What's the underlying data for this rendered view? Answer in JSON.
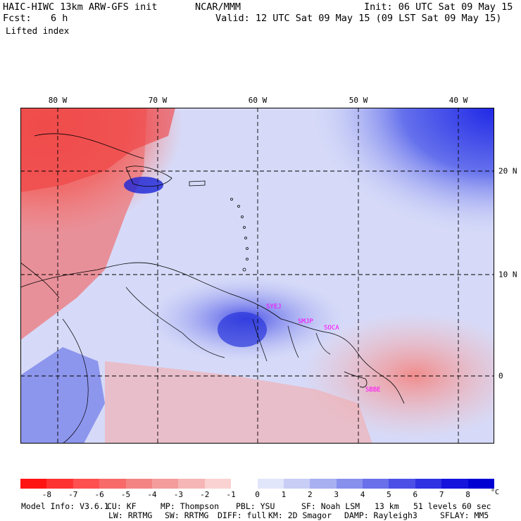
{
  "header": {
    "title_left": "HAIC-HIWC 13km ARW-GFS init",
    "org": "NCAR/MMM",
    "init": "Init: 06 UTC Sat 09 May 15",
    "fcst_label": "Fcst:",
    "fcst_value": "6 h",
    "valid": "Valid: 12 UTC Sat 09 May 15 (09 LST Sat 09 May 15)",
    "field": "Lifted index"
  },
  "map": {
    "lon_labels": [
      "80 W",
      "70 W",
      "60 W",
      "50 W",
      "40 W"
    ],
    "lat_labels": [
      "20 N",
      "10 N",
      "0"
    ],
    "stations": [
      "SYEJ",
      "SMJP",
      "SOCA",
      "SBBE"
    ],
    "colors": {
      "strong_negative": "#ff2020",
      "negative": "#f08080",
      "near_zero": "#ffffff",
      "positive": "#8c96f0",
      "strong_positive": "#0000e6"
    }
  },
  "colorbar": {
    "ticks": [
      "-8",
      "-7",
      "-6",
      "-5",
      "-4",
      "-3",
      "-2",
      "-1",
      "0",
      "1",
      "2",
      "3",
      "4",
      "5",
      "6",
      "7",
      "8"
    ],
    "unit": "°C",
    "colors": [
      "#ff1414",
      "#ff3232",
      "#ff5050",
      "#f86a6a",
      "#f48484",
      "#f49c9c",
      "#f6b6b6",
      "#fad2d2",
      "#ffffff",
      "#e2e6fa",
      "#c8cdf6",
      "#a8b0f2",
      "#8890ee",
      "#6a70ea",
      "#4c50e6",
      "#2e32e2",
      "#1414dc",
      "#0000d2"
    ]
  },
  "footer": {
    "line1": [
      "Model Info: V3.6.1",
      "CU: KF",
      "MP: Thompson",
      "PBL: YSU",
      "SF: Noah LSM",
      "13 km",
      "51 levels",
      "60 sec"
    ],
    "line2": [
      "LW: RRTMG",
      "SW: RRTMG",
      "DIFF: full",
      "KM: 2D Smagor",
      "DAMP: Rayleigh3",
      "SFLAY: MM5"
    ]
  }
}
